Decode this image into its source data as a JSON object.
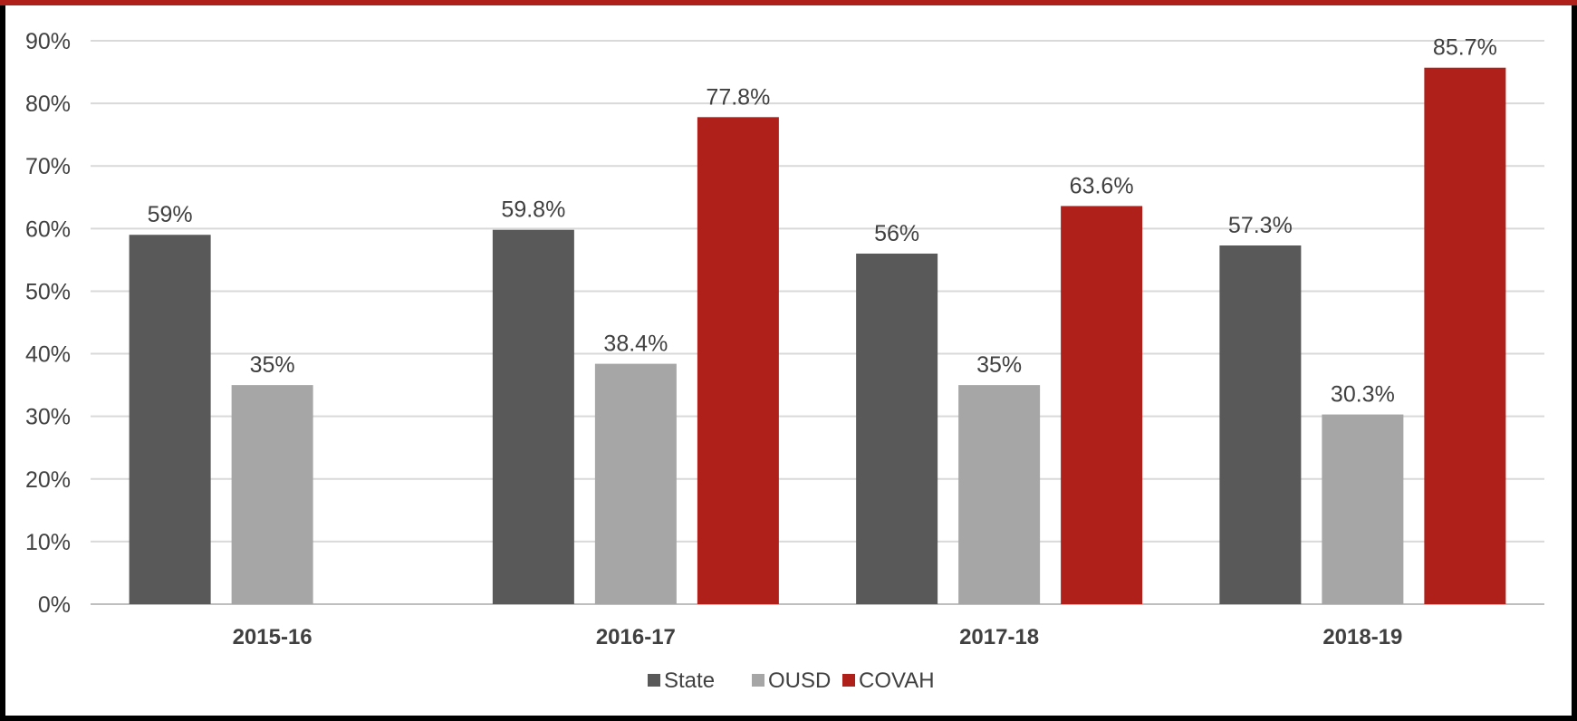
{
  "chart_data": {
    "type": "bar",
    "title": "",
    "xlabel": "",
    "ylabel": "",
    "categories": [
      "2015-16",
      "2016-17",
      "2017-18",
      "2018-19"
    ],
    "ylim": [
      0,
      90
    ],
    "yticks": [
      0,
      10,
      20,
      30,
      40,
      50,
      60,
      70,
      80,
      90
    ],
    "ytick_labels": [
      "0%",
      "10%",
      "20%",
      "30%",
      "40%",
      "50%",
      "60%",
      "70%",
      "80%",
      "90%"
    ],
    "grid": true,
    "legend_position": "bottom",
    "series": [
      {
        "name": "State",
        "color": "#595959",
        "values": [
          59,
          59.8,
          56,
          57.3
        ],
        "labels": [
          "59%",
          "59.8%",
          "56%",
          "57.3%"
        ]
      },
      {
        "name": "OUSD",
        "color": "#a6a6a6",
        "values": [
          35,
          38.4,
          35,
          30.3
        ],
        "labels": [
          "35%",
          "38.4%",
          "35%",
          "30.3%"
        ]
      },
      {
        "name": "COVAH",
        "color": "#b0201a",
        "values": [
          null,
          77.8,
          63.6,
          85.7
        ],
        "labels": [
          "",
          "77.8%",
          "63.6%",
          "85.7%"
        ]
      }
    ]
  }
}
